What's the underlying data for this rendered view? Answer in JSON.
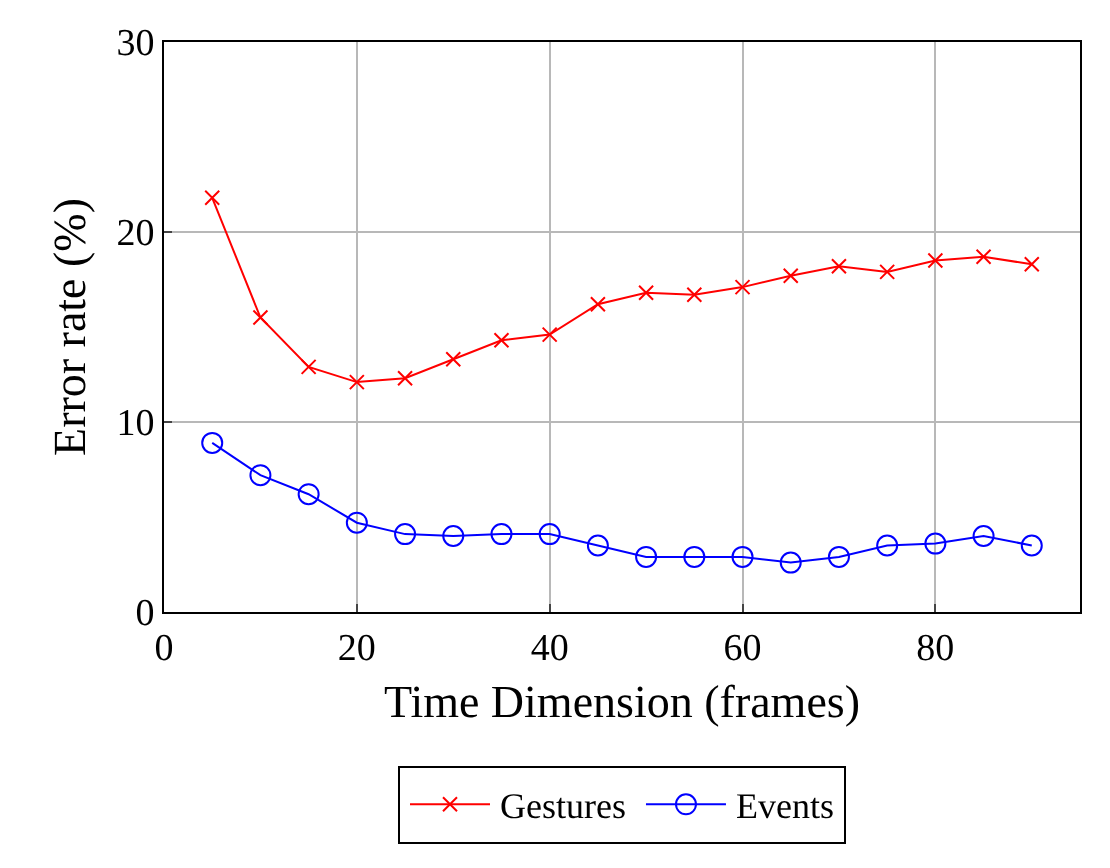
{
  "chart_data": {
    "type": "line",
    "xlabel": "Time Dimension (frames)",
    "ylabel": "Error rate (%)",
    "x": [
      5,
      10,
      15,
      20,
      25,
      30,
      35,
      40,
      45,
      50,
      55,
      60,
      65,
      70,
      75,
      80,
      85,
      90
    ],
    "series": [
      {
        "name": "Gestures",
        "color": "#ff0000",
        "marker": "cross",
        "values": [
          21.8,
          15.5,
          12.9,
          12.1,
          12.3,
          13.3,
          14.3,
          14.6,
          16.2,
          16.8,
          16.7,
          17.1,
          17.7,
          18.2,
          17.9,
          18.5,
          18.7,
          18.3
        ]
      },
      {
        "name": "Events",
        "color": "#0000ff",
        "marker": "circle",
        "values": [
          8.9,
          7.2,
          6.2,
          4.7,
          4.1,
          4.0,
          4.1,
          4.1,
          3.5,
          2.9,
          2.9,
          2.9,
          2.6,
          2.9,
          3.5,
          3.6,
          4.0,
          3.5
        ]
      }
    ],
    "xlim": [
      0,
      95
    ],
    "xticks": [
      0,
      20,
      40,
      60,
      80
    ],
    "ylim": [
      0,
      30
    ],
    "yticks": [
      0,
      10,
      20,
      30
    ],
    "grid": true,
    "legend": "bottom"
  }
}
